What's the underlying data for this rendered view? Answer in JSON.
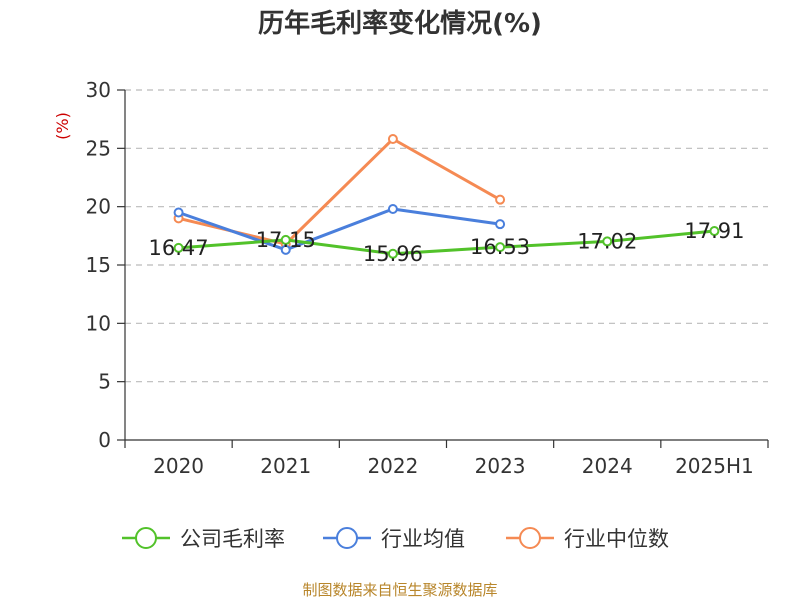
{
  "chart_data": {
    "type": "line",
    "title": "历年毛利率变化情况(%)",
    "y_unit": "(%)",
    "categories": [
      "2020",
      "2021",
      "2022",
      "2023",
      "2024",
      "2025H1"
    ],
    "ylim": [
      0,
      30
    ],
    "yticks": [
      0,
      5,
      10,
      15,
      20,
      25,
      30
    ],
    "grid": true,
    "legend_position": "bottom",
    "series": [
      {
        "name": "公司毛利率",
        "color": "#52c22a",
        "values": [
          16.47,
          17.15,
          15.96,
          16.53,
          17.02,
          17.91
        ],
        "labels": [
          "16.47",
          "17.15",
          "15.96",
          "16.53",
          "17.02",
          "17.91"
        ]
      },
      {
        "name": "行业均值",
        "color": "#4a7fdc",
        "values": [
          19.5,
          16.3,
          19.8,
          18.5,
          null,
          null
        ]
      },
      {
        "name": "行业中位数",
        "color": "#f58a53",
        "values": [
          19.0,
          16.8,
          25.8,
          20.6,
          null,
          null
        ]
      }
    ]
  },
  "source": "制图数据来自恒生聚源数据库"
}
